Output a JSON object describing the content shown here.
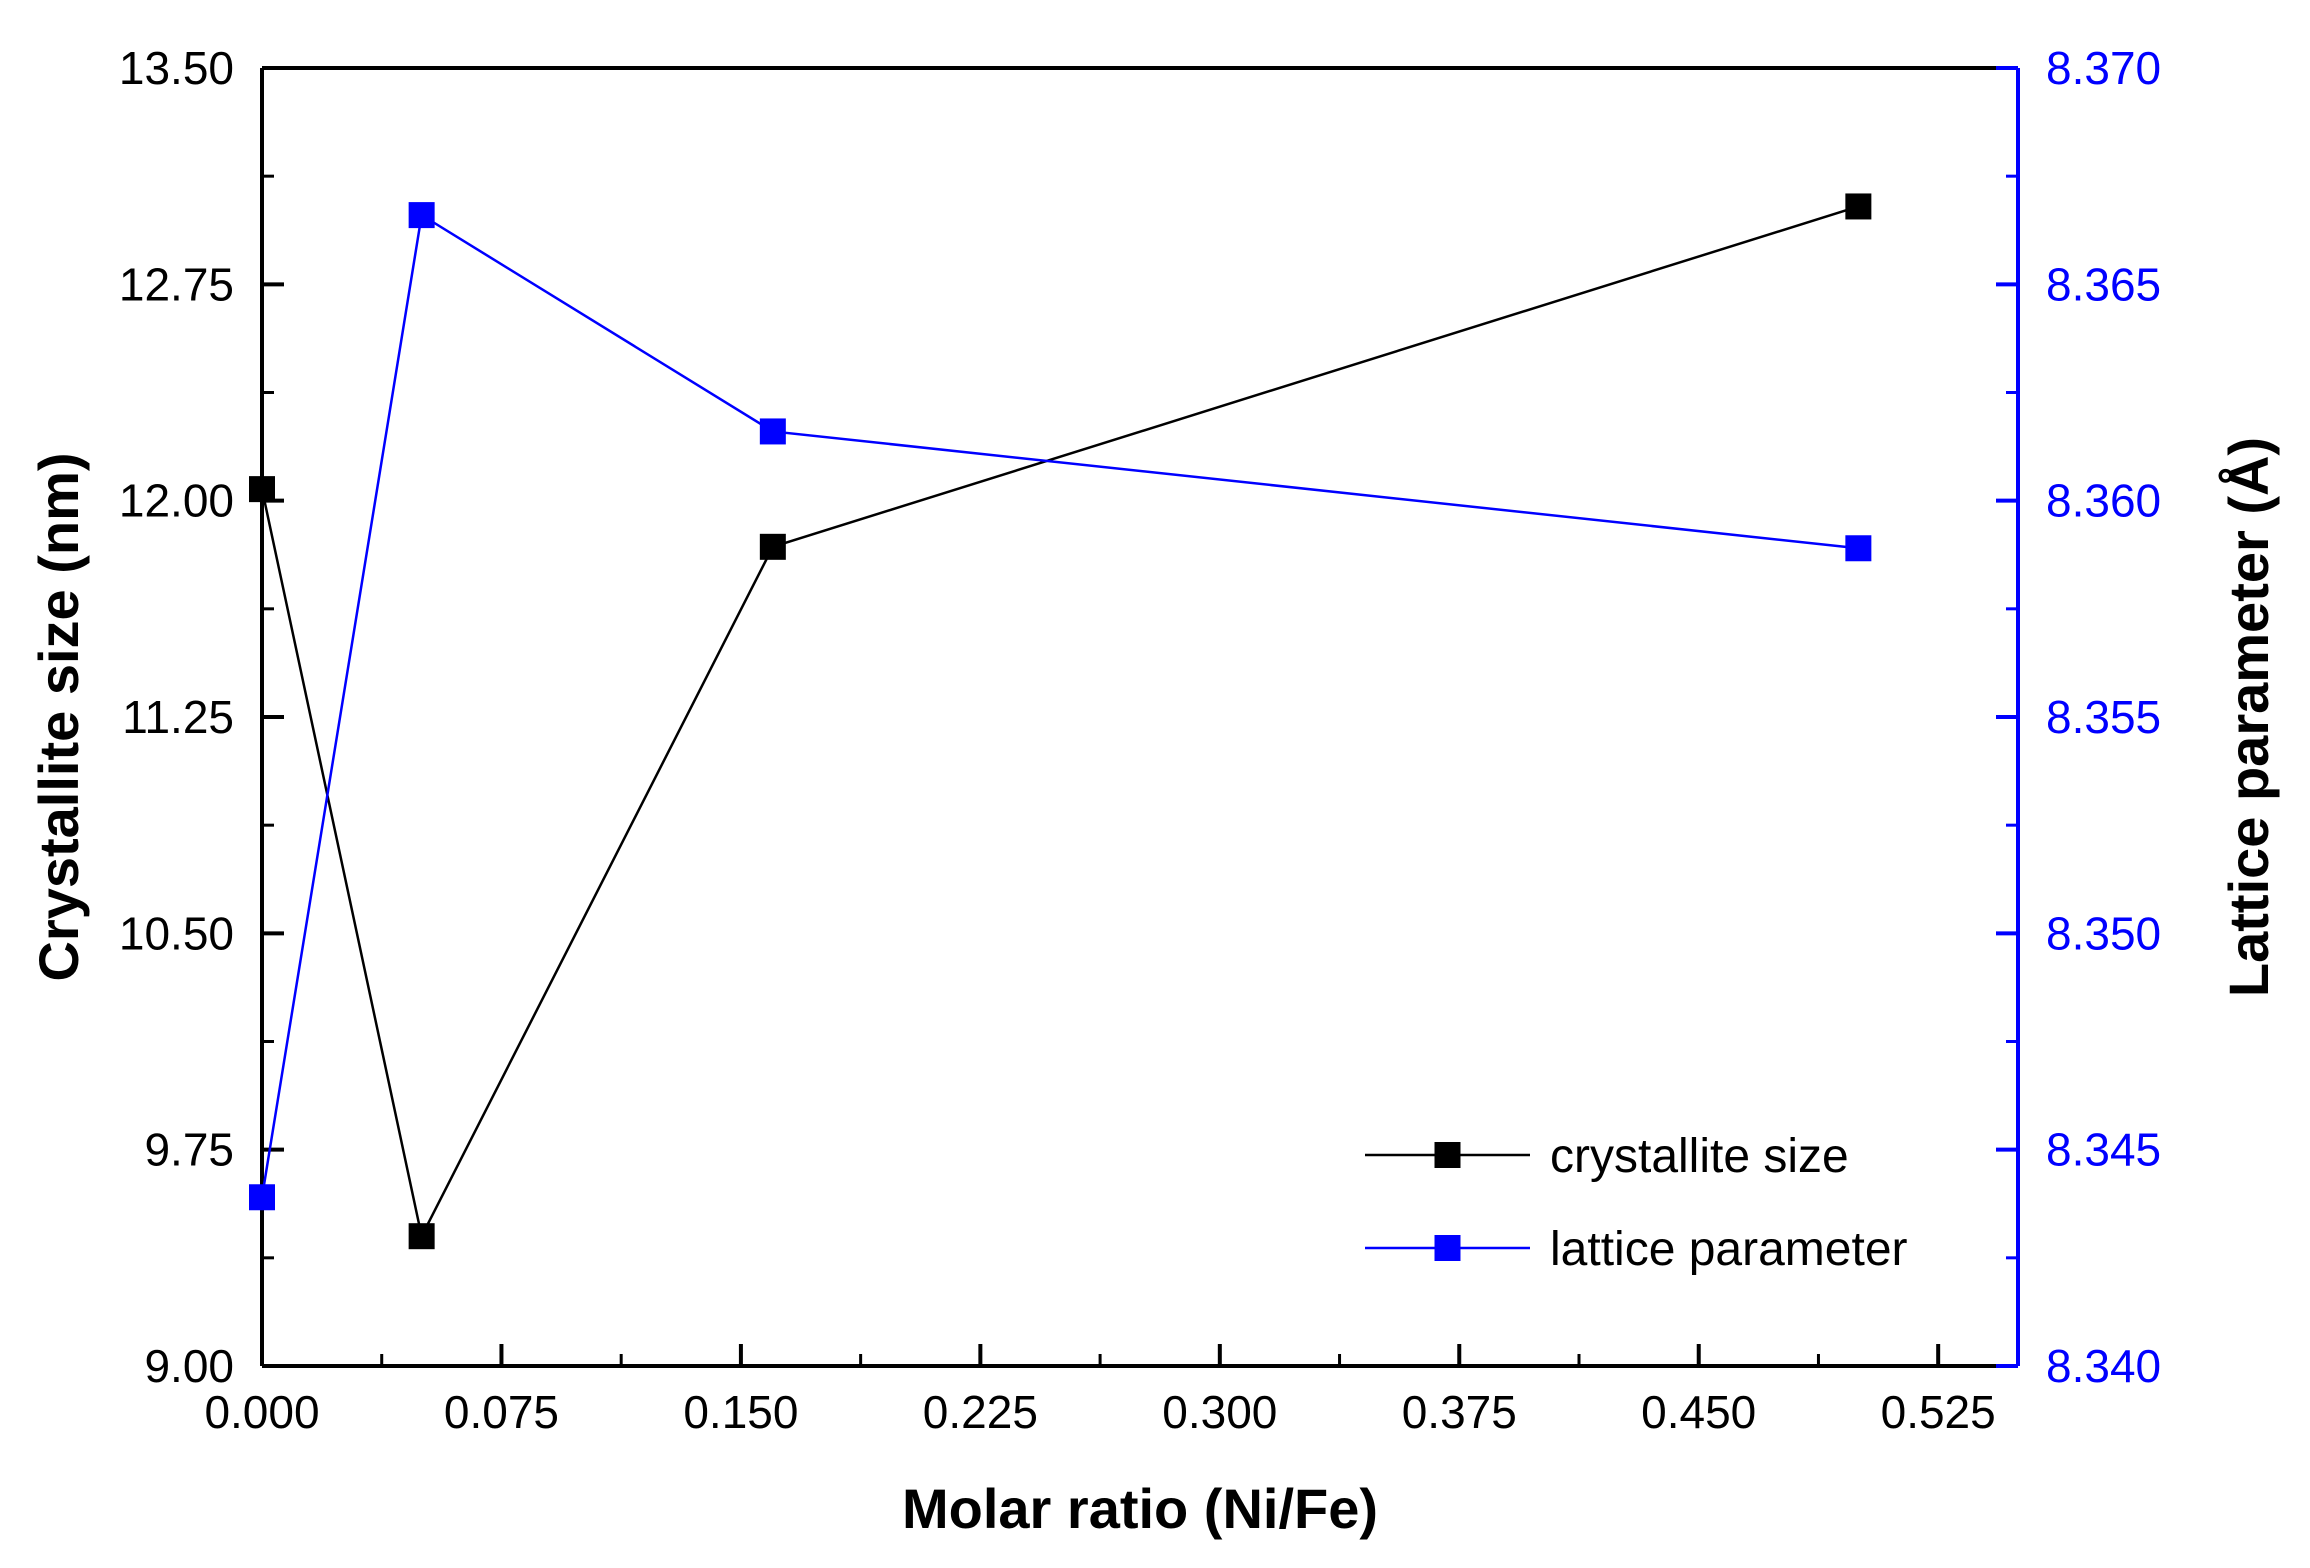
{
  "chart_data": {
    "type": "line",
    "title": "",
    "xlabel": "Molar ratio (Ni/Fe)",
    "ylabel": "Crystallite size (nm)",
    "y2label": "Lattice parameter (Å)",
    "xlim": [
      0,
      0.55
    ],
    "ylim": [
      9.0,
      13.5
    ],
    "y2lim": [
      8.34,
      8.37
    ],
    "x_ticks": [
      "0.000",
      "0.075",
      "0.150",
      "0.225",
      "0.300",
      "0.375",
      "0.450",
      "0.525"
    ],
    "y_ticks": [
      "9.00",
      "9.75",
      "10.50",
      "11.25",
      "12.00",
      "12.75",
      "13.50"
    ],
    "y2_ticks": [
      "8.340",
      "8.345",
      "8.350",
      "8.355",
      "8.360",
      "8.365",
      "8.370"
    ],
    "legend_position": "bottom-right",
    "grid": false,
    "series": [
      {
        "name": "crystallite size",
        "axis": "left",
        "color": "#000000",
        "x": [
          0.0,
          0.05,
          0.16,
          0.5
        ],
        "values": [
          12.04,
          9.45,
          11.84,
          13.02
        ]
      },
      {
        "name": "lattice parameter",
        "axis": "right",
        "color": "#0000ff",
        "x": [
          0.0,
          0.05,
          0.16,
          0.5
        ],
        "values": [
          8.3439,
          8.3666,
          8.3616,
          8.3589
        ]
      }
    ]
  }
}
